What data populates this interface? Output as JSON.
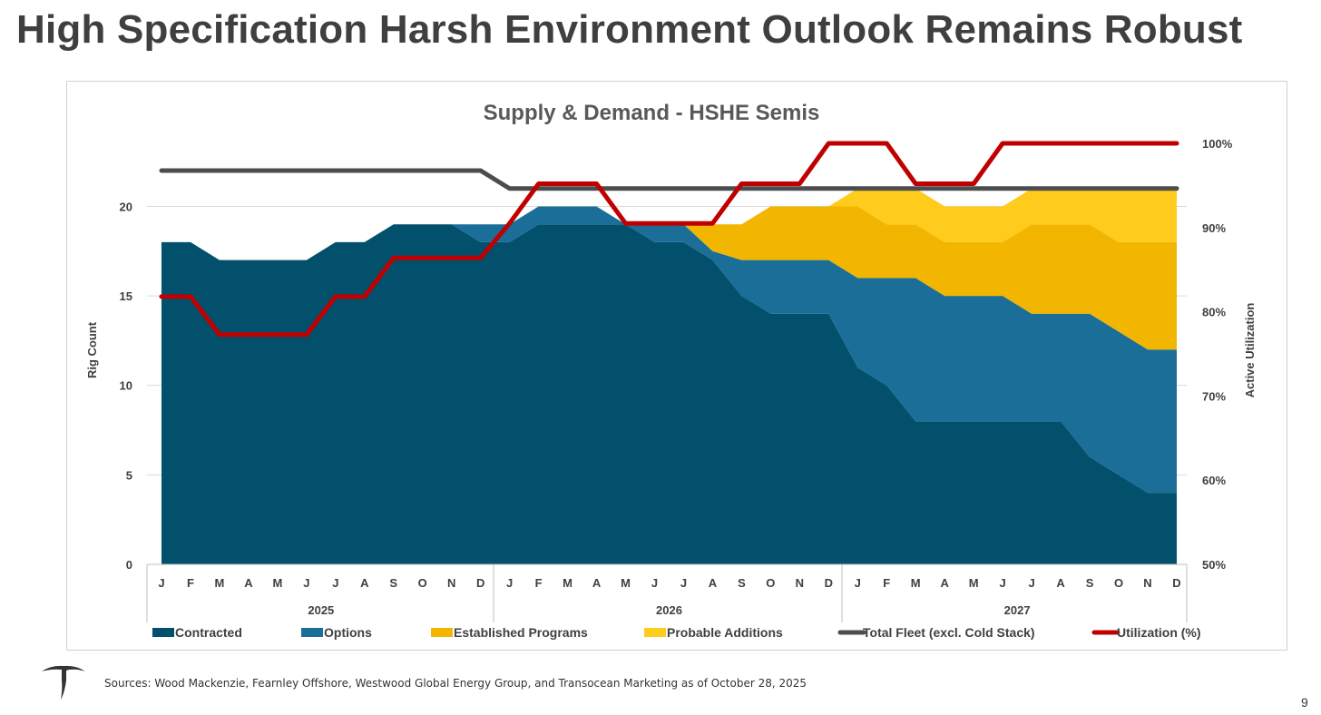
{
  "slide": {
    "title": "High Specification Harsh Environment Outlook Remains Robust",
    "sources": "Sources: Wood Mackenzie, Fearnley Offshore, Westwood Global Energy Group, and Transocean Marketing as of October 28, 2025",
    "page_number": "9"
  },
  "colors": {
    "contracted": "#03506c",
    "options": "#1a6e98",
    "established": "#f2b600",
    "probable": "#ffcb1c",
    "total_fleet": "#4d4d4f",
    "utilization": "#c00000"
  },
  "chart_data": {
    "type": "area",
    "stacked": true,
    "title": "Supply & Demand - HSHE Semis",
    "ylabel": "Rig Count",
    "y2label": "Active Utilization",
    "ylim": [
      0,
      22
    ],
    "y_ticks": [
      "0",
      "5",
      "10",
      "15",
      "20"
    ],
    "y2lim": [
      0.5,
      1.0
    ],
    "y2_ticks": [
      "50%",
      "60%",
      "70%",
      "80%",
      "90%",
      "100%"
    ],
    "months": [
      "J",
      "F",
      "M",
      "A",
      "M",
      "J",
      "J",
      "A",
      "S",
      "O",
      "N",
      "D",
      "J",
      "F",
      "M",
      "A",
      "M",
      "J",
      "J",
      "A",
      "S",
      "O",
      "N",
      "D",
      "J",
      "F",
      "M",
      "A",
      "M",
      "J",
      "J",
      "A",
      "S",
      "O",
      "N",
      "D"
    ],
    "years": [
      "2025",
      "2026",
      "2027"
    ],
    "series": [
      {
        "name": "Contracted",
        "kind": "area",
        "values": [
          18,
          18,
          17,
          17,
          17,
          17,
          18,
          18,
          19,
          19,
          19,
          18,
          18,
          19,
          19,
          19,
          19,
          18,
          18,
          17,
          15,
          14,
          14,
          14,
          11,
          10,
          8,
          8,
          8,
          8,
          8,
          8,
          6,
          5,
          4,
          4
        ]
      },
      {
        "name": "Options",
        "kind": "area",
        "values": [
          0,
          0,
          0,
          0,
          0,
          0,
          0,
          0,
          0,
          0,
          0,
          1,
          1,
          1,
          1,
          1,
          0,
          1,
          1,
          0.5,
          2,
          3,
          3,
          3,
          5,
          6,
          8,
          7,
          7,
          7,
          6,
          6,
          8,
          8,
          8,
          8
        ]
      },
      {
        "name": "Established Programs",
        "kind": "area",
        "values": [
          0,
          0,
          0,
          0,
          0,
          0,
          0,
          0,
          0,
          0,
          0,
          0,
          0,
          0,
          0,
          0,
          0,
          0,
          0,
          1.5,
          2,
          3,
          3,
          3,
          4,
          3,
          3,
          3,
          3,
          3,
          5,
          5,
          5,
          5,
          6,
          6
        ]
      },
      {
        "name": "Probable Additions",
        "kind": "area",
        "values": [
          0,
          0,
          0,
          0,
          0,
          0,
          0,
          0,
          0,
          0,
          0,
          0,
          0,
          0,
          0,
          0,
          0,
          0,
          0,
          0,
          0,
          0,
          0,
          0,
          1,
          2,
          2,
          2,
          2,
          2,
          2,
          2,
          2,
          3,
          3,
          3
        ]
      },
      {
        "name": "Total Fleet (excl. Cold Stack)",
        "kind": "line",
        "axis": "left",
        "values": [
          22,
          22,
          22,
          22,
          22,
          22,
          22,
          22,
          22,
          22,
          22,
          22,
          21,
          21,
          21,
          21,
          21,
          21,
          21,
          21,
          21,
          21,
          21,
          21,
          21,
          21,
          21,
          21,
          21,
          21,
          21,
          21,
          21,
          21,
          21,
          21
        ]
      },
      {
        "name": "Utilization (%)",
        "kind": "line",
        "axis": "right",
        "values": [
          0.818,
          0.818,
          0.773,
          0.773,
          0.773,
          0.773,
          0.818,
          0.818,
          0.864,
          0.864,
          0.864,
          0.864,
          0.905,
          0.952,
          0.952,
          0.952,
          0.905,
          0.905,
          0.905,
          0.905,
          0.952,
          0.952,
          0.952,
          1.0,
          1.0,
          1.0,
          0.952,
          0.952,
          0.952,
          1.0,
          1.0,
          1.0,
          1.0,
          1.0,
          1.0,
          1.0
        ]
      }
    ]
  }
}
